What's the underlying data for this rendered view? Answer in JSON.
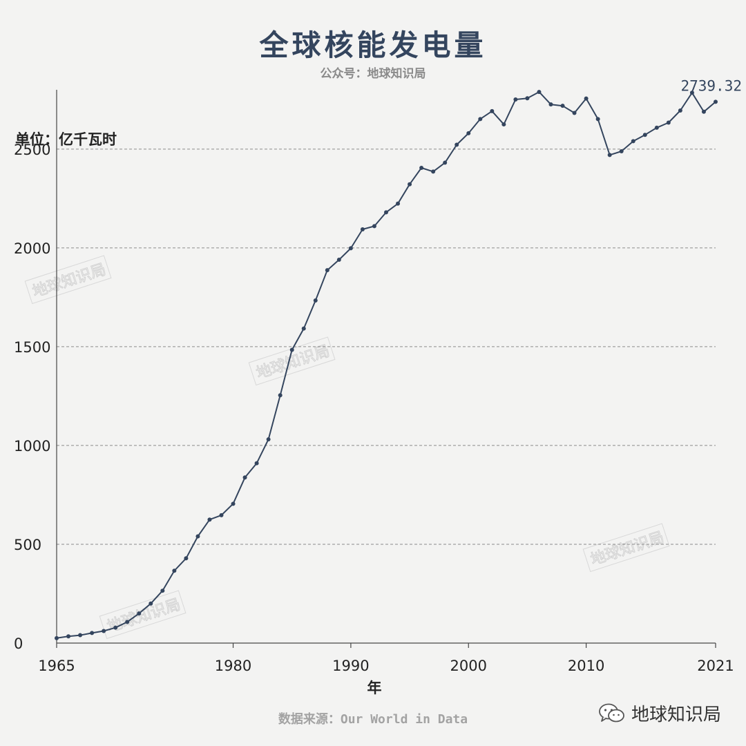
{
  "title": "全球核能发电量",
  "subtitle": "公众号：地球知识局",
  "unit_label": "单位：亿千瓦时",
  "source": "数据来源：Our World in Data",
  "brand": {
    "name": "地球知识局",
    "icon": "wechat-icon"
  },
  "watermark": "地球知识局",
  "colors": {
    "line": "#34455e",
    "grid": "#8a8a8a",
    "text": "#222222"
  },
  "chart_data": {
    "type": "line",
    "xlabel": "年",
    "ylabel": "",
    "xlim": [
      1965,
      2021
    ],
    "ylim": [
      0,
      2800
    ],
    "xticks": [
      1965,
      1980,
      1990,
      2000,
      2010,
      2021
    ],
    "yticks": [
      0,
      500,
      1000,
      1500,
      2000,
      2500
    ],
    "grid": "horizontal dashed",
    "last_value_label": "2739.32",
    "series": [
      {
        "x": [
          1965,
          1966,
          1967,
          1968,
          1969,
          1970,
          1971,
          1972,
          1973,
          1974,
          1975,
          1976,
          1977,
          1978,
          1979,
          1980,
          1981,
          1982,
          1983,
          1984,
          1985,
          1986,
          1987,
          1988,
          1989,
          1990,
          1991,
          1992,
          1993,
          1994,
          1995,
          1996,
          1997,
          1998,
          1999,
          2000,
          2001,
          2002,
          2003,
          2004,
          2005,
          2006,
          2007,
          2008,
          2009,
          2010,
          2011,
          2012,
          2013,
          2014,
          2015,
          2016,
          2017,
          2018,
          2019,
          2020,
          2021
        ],
        "y": [
          25,
          34,
          40,
          51,
          61,
          78,
          107,
          150,
          200,
          265,
          366,
          429,
          540,
          625,
          647,
          705,
          838,
          910,
          1031,
          1254,
          1484,
          1592,
          1734,
          1887,
          1940,
          1998,
          2094,
          2110,
          2180,
          2224,
          2322,
          2405,
          2386,
          2431,
          2522,
          2580,
          2652,
          2692,
          2625,
          2751,
          2757,
          2789,
          2726,
          2719,
          2683,
          2756,
          2652,
          2470,
          2489,
          2540,
          2572,
          2608,
          2634,
          2695,
          2785,
          2689,
          2739.32
        ]
      }
    ]
  }
}
